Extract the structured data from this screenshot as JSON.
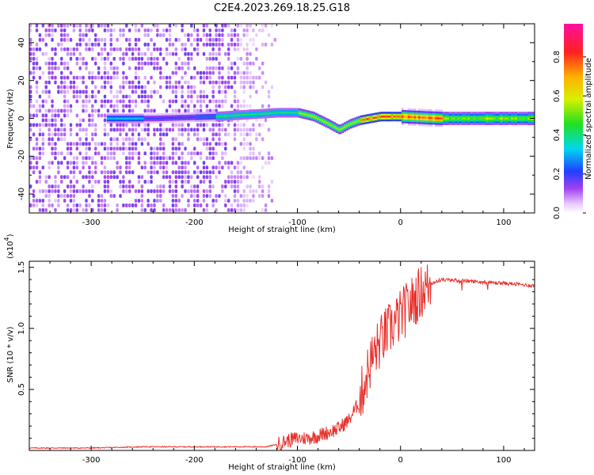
{
  "title": "C2E4.2023.269.18.25.G18",
  "chart_data": [
    {
      "type": "heatmap",
      "xlabel": "Height of straight line (km)",
      "ylabel": "Frequency (Hz)",
      "xlim": [
        -360,
        130
      ],
      "ylim": [
        -50,
        50
      ],
      "xticks": [
        -300,
        -200,
        -100,
        0,
        100
      ],
      "yticks": [
        -40,
        -20,
        0,
        20,
        40
      ],
      "colorbar": {
        "label": "Normalized spectral amplitude",
        "range": [
          0,
          0.97
        ],
        "ticks": [
          "0.0",
          "0.2",
          "0.4",
          "0.6",
          "0.8"
        ],
        "tick_values": [
          0.0,
          0.2,
          0.4,
          0.6,
          0.8
        ],
        "colormap": "rainbow (white, violet, blue, cyan, green, yellow, orange, red, magenta)"
      },
      "ridge": {
        "x": [
          -280,
          -240,
          -180,
          -150,
          -120,
          -100,
          -85,
          -70,
          -60,
          -50,
          -40,
          -20,
          0,
          40,
          100,
          130
        ],
        "frequency": [
          0,
          0,
          1,
          2,
          3,
          3,
          1,
          -3,
          -6,
          -3,
          -1,
          1,
          1,
          0,
          0,
          0
        ]
      }
    },
    {
      "type": "line",
      "xlabel": "Height of straight line (km)",
      "ylabel": "SNR (10 * v/v)",
      "scale_note": "(x10",
      "scale_exp": "4",
      "scale_close": ")",
      "xlim": [
        -360,
        130
      ],
      "ylim": [
        0,
        1.55
      ],
      "xticks": [
        -300,
        -200,
        -100,
        0,
        100
      ],
      "yticks": [
        "0.5",
        "1.0",
        "1.5"
      ],
      "ytick_values": [
        0.5,
        1.0,
        1.5
      ],
      "color": "#e8302c",
      "series": [
        {
          "x": [
            -360,
            -300,
            -250,
            -200,
            -160,
            -130,
            -120,
            -110,
            -100,
            -90,
            -80,
            -70,
            -60,
            -50,
            -40,
            -35,
            -30,
            -25,
            -20,
            -15,
            -10,
            -5,
            0,
            10,
            20,
            30,
            40,
            60,
            80,
            100,
            115,
            130
          ],
          "values": [
            0.02,
            0.02,
            0.03,
            0.03,
            0.03,
            0.03,
            0.05,
            0.08,
            0.1,
            0.1,
            0.12,
            0.15,
            0.18,
            0.25,
            0.4,
            0.55,
            0.7,
            0.8,
            0.88,
            0.95,
            1.0,
            1.05,
            1.1,
            1.2,
            1.3,
            1.37,
            1.4,
            1.39,
            1.38,
            1.37,
            1.36,
            1.35
          ]
        }
      ]
    }
  ]
}
